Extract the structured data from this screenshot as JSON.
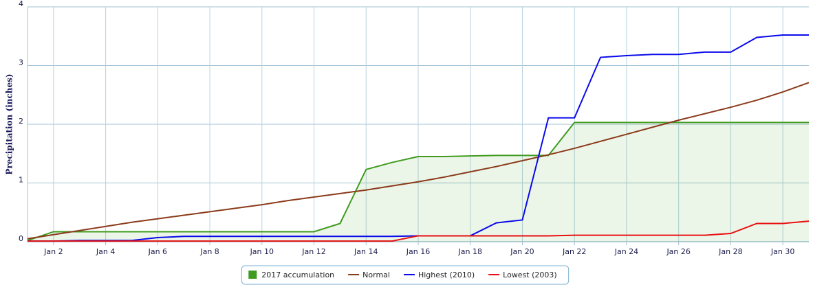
{
  "chart_data": {
    "type": "line",
    "y_label": "Precipitation (inches)",
    "x": [
      1,
      2,
      3,
      4,
      5,
      6,
      7,
      8,
      9,
      10,
      11,
      12,
      13,
      14,
      15,
      16,
      17,
      18,
      19,
      20,
      21,
      22,
      23,
      24,
      25,
      26,
      27,
      28,
      29,
      30,
      31
    ],
    "xlim": [
      1,
      31
    ],
    "xticks": [
      {
        "value": 2,
        "label": "Jan 2"
      },
      {
        "value": 4,
        "label": "Jan 4"
      },
      {
        "value": 6,
        "label": "Jan 6"
      },
      {
        "value": 8,
        "label": "Jan 8"
      },
      {
        "value": 10,
        "label": "Jan 10"
      },
      {
        "value": 12,
        "label": "Jan 12"
      },
      {
        "value": 14,
        "label": "Jan 14"
      },
      {
        "value": 16,
        "label": "Jan 16"
      },
      {
        "value": 18,
        "label": "Jan 18"
      },
      {
        "value": 20,
        "label": "Jan 20"
      },
      {
        "value": 22,
        "label": "Jan 22"
      },
      {
        "value": 24,
        "label": "Jan 24"
      },
      {
        "value": 26,
        "label": "Jan 26"
      },
      {
        "value": 28,
        "label": "Jan 28"
      },
      {
        "value": 30,
        "label": "Jan 30"
      }
    ],
    "ylim": [
      0,
      4
    ],
    "yticks": [
      0,
      1,
      2,
      3,
      4
    ],
    "grid": true,
    "legend": "bottom",
    "series": [
      {
        "name": "2017 accumulation",
        "color": "#3f9b1f",
        "fill": true,
        "values": [
          0.02,
          0.17,
          0.17,
          0.17,
          0.17,
          0.17,
          0.17,
          0.17,
          0.17,
          0.17,
          0.17,
          0.17,
          0.31,
          1.23,
          1.35,
          1.45,
          1.45,
          1.46,
          1.47,
          1.47,
          1.47,
          2.03,
          2.03,
          2.03,
          2.03,
          2.03,
          2.03,
          2.03,
          2.03,
          2.03,
          2.03
        ]
      },
      {
        "name": "Normal",
        "color": "#8b3a1a",
        "values": [
          0.05,
          0.12,
          0.19,
          0.26,
          0.33,
          0.39,
          0.45,
          0.51,
          0.57,
          0.63,
          0.7,
          0.76,
          0.82,
          0.88,
          0.95,
          1.02,
          1.1,
          1.19,
          1.28,
          1.38,
          1.48,
          1.59,
          1.71,
          1.83,
          1.95,
          2.07,
          2.18,
          2.29,
          2.41,
          2.55,
          2.71
        ]
      },
      {
        "name": "Highest (2010)",
        "color": "#0a0aeb",
        "values": [
          0.01,
          0.01,
          0.02,
          0.02,
          0.02,
          0.07,
          0.09,
          0.09,
          0.09,
          0.09,
          0.09,
          0.09,
          0.09,
          0.09,
          0.09,
          0.1,
          0.1,
          0.1,
          0.32,
          0.37,
          2.11,
          2.11,
          3.14,
          3.17,
          3.19,
          3.19,
          3.23,
          3.23,
          3.48,
          3.52,
          3.52
        ]
      },
      {
        "name": "Lowest (2003)",
        "color": "#e81010",
        "values": [
          0.01,
          0.01,
          0.01,
          0.01,
          0.01,
          0.01,
          0.01,
          0.01,
          0.01,
          0.01,
          0.01,
          0.01,
          0.01,
          0.01,
          0.01,
          0.1,
          0.1,
          0.1,
          0.1,
          0.1,
          0.1,
          0.11,
          0.11,
          0.11,
          0.11,
          0.11,
          0.11,
          0.14,
          0.31,
          0.31,
          0.35
        ]
      }
    ]
  }
}
